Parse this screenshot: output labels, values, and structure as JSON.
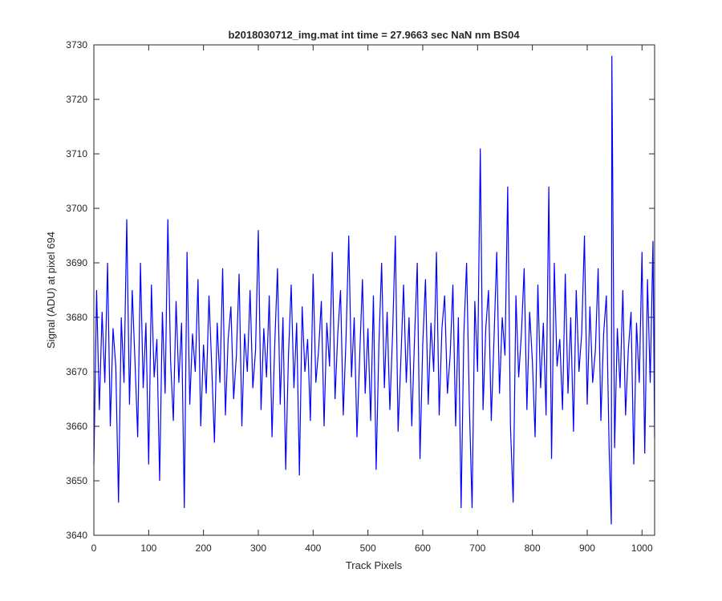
{
  "chart_data": {
    "type": "line",
    "title": "b2018030712_img.mat int time = 27.9663 sec  NaN nm BS04",
    "xlabel": "Track Pixels",
    "ylabel": "Signal (ADU) at pixel 694",
    "xlim": [
      0,
      1023
    ],
    "ylim": [
      3640,
      3730
    ],
    "xticks": [
      0,
      100,
      200,
      300,
      400,
      500,
      600,
      700,
      800,
      900,
      1000
    ],
    "yticks": [
      3640,
      3650,
      3660,
      3670,
      3680,
      3690,
      3700,
      3710,
      3720,
      3730
    ],
    "x": [
      0,
      5,
      10,
      15,
      20,
      25,
      30,
      35,
      40,
      45,
      50,
      55,
      60,
      65,
      70,
      75,
      80,
      85,
      90,
      95,
      100,
      105,
      110,
      115,
      120,
      125,
      130,
      135,
      140,
      145,
      150,
      155,
      160,
      165,
      170,
      175,
      180,
      185,
      190,
      195,
      200,
      205,
      210,
      215,
      220,
      225,
      230,
      235,
      240,
      245,
      250,
      255,
      260,
      265,
      270,
      275,
      280,
      285,
      290,
      295,
      300,
      305,
      310,
      315,
      320,
      325,
      330,
      335,
      340,
      345,
      350,
      355,
      360,
      365,
      370,
      375,
      380,
      385,
      390,
      395,
      400,
      405,
      410,
      415,
      420,
      425,
      430,
      435,
      440,
      445,
      450,
      455,
      460,
      465,
      470,
      475,
      480,
      485,
      490,
      495,
      500,
      505,
      510,
      515,
      520,
      525,
      530,
      535,
      540,
      545,
      550,
      555,
      560,
      565,
      570,
      575,
      580,
      585,
      590,
      595,
      600,
      605,
      610,
      615,
      620,
      625,
      630,
      635,
      640,
      645,
      650,
      655,
      660,
      665,
      670,
      675,
      680,
      685,
      690,
      695,
      700,
      705,
      710,
      715,
      720,
      725,
      730,
      735,
      740,
      745,
      750,
      755,
      760,
      765,
      770,
      775,
      780,
      785,
      790,
      795,
      800,
      805,
      810,
      815,
      820,
      825,
      830,
      835,
      840,
      845,
      850,
      855,
      860,
      865,
      870,
      875,
      880,
      885,
      890,
      895,
      900,
      905,
      910,
      915,
      920,
      925,
      930,
      935,
      940,
      944,
      945,
      950,
      955,
      960,
      965,
      970,
      975,
      980,
      985,
      990,
      995,
      1000,
      1005,
      1010,
      1015,
      1020,
      1023
    ],
    "series": [
      {
        "name": "Signal",
        "color": "#0000ff",
        "values": [
          3653,
          3685,
          3663,
          3681,
          3668,
          3690,
          3660,
          3678,
          3671,
          3646,
          3680,
          3668,
          3698,
          3664,
          3685,
          3672,
          3658,
          3690,
          3667,
          3679,
          3653,
          3686,
          3669,
          3676,
          3650,
          3681,
          3666,
          3698,
          3672,
          3661,
          3683,
          3668,
          3679,
          3645,
          3692,
          3664,
          3677,
          3670,
          3687,
          3660,
          3675,
          3666,
          3684,
          3671,
          3657,
          3679,
          3668,
          3689,
          3662,
          3676,
          3682,
          3665,
          3673,
          3688,
          3660,
          3677,
          3670,
          3685,
          3667,
          3674,
          3696,
          3663,
          3678,
          3669,
          3684,
          3658,
          3675,
          3689,
          3664,
          3680,
          3652,
          3673,
          3686,
          3667,
          3679,
          3651,
          3682,
          3670,
          3676,
          3661,
          3688,
          3668,
          3674,
          3683,
          3660,
          3679,
          3671,
          3692,
          3665,
          3677,
          3685,
          3662,
          3676,
          3695,
          3669,
          3680,
          3658,
          3673,
          3687,
          3666,
          3678,
          3661,
          3684,
          3652,
          3675,
          3690,
          3667,
          3681,
          3663,
          3677,
          3695,
          3659,
          3672,
          3686,
          3668,
          3680,
          3660,
          3676,
          3690,
          3654,
          3675,
          3687,
          3664,
          3679,
          3670,
          3692,
          3662,
          3678,
          3684,
          3666,
          3673,
          3686,
          3660,
          3680,
          3645,
          3677,
          3690,
          3664,
          3645,
          3683,
          3670,
          3711,
          3663,
          3678,
          3685,
          3661,
          3676,
          3692,
          3666,
          3680,
          3673,
          3704,
          3660,
          3646,
          3684,
          3669,
          3677,
          3689,
          3663,
          3681,
          3672,
          3658,
          3686,
          3667,
          3679,
          3662,
          3704,
          3654,
          3690,
          3671,
          3676,
          3663,
          3688,
          3666,
          3680,
          3659,
          3685,
          3670,
          3677,
          3695,
          3664,
          3682,
          3668,
          3674,
          3689,
          3661,
          3677,
          3684,
          3656,
          3642,
          3728,
          3656,
          3678,
          3667,
          3685,
          3662,
          3674,
          3681,
          3653,
          3679,
          3668,
          3692,
          3655,
          3687,
          3668,
          3694,
          3658
        ]
      }
    ]
  }
}
